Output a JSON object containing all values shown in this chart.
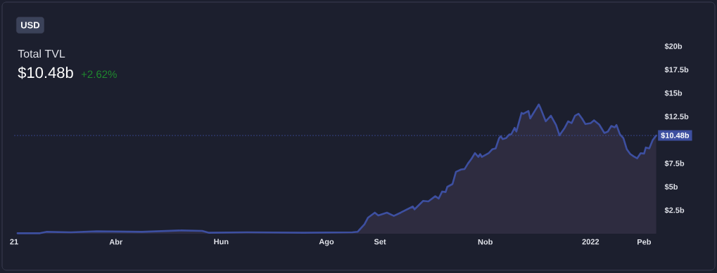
{
  "chart_data": {
    "type": "area",
    "title": "Total TVL",
    "subtitle": "$10.48b",
    "annotations": [
      "USD",
      "+2.62%"
    ],
    "x": [
      "2021-02-03",
      "2021-02-16",
      "2021-02-20",
      "2021-03-06",
      "2021-03-21",
      "2021-04-16",
      "2021-05-09",
      "2021-05-21",
      "2021-05-25",
      "2021-06-16",
      "2021-07-19",
      "2021-08-16",
      "2021-08-19",
      "2021-08-23",
      "2021-08-25",
      "2021-08-29",
      "2021-08-31",
      "2021-09-05",
      "2021-09-09",
      "2021-09-13",
      "2021-09-20",
      "2021-09-21",
      "2021-09-26",
      "2021-09-29",
      "2021-10-03",
      "2021-10-05",
      "2021-10-07",
      "2021-10-09",
      "2021-10-10",
      "2021-10-13",
      "2021-10-15",
      "2021-10-18",
      "2021-10-20",
      "2021-10-22",
      "2021-10-24",
      "2021-10-26",
      "2021-10-28",
      "2021-10-29",
      "2021-10-30",
      "2021-11-03",
      "2021-11-05",
      "2021-11-07",
      "2021-11-09",
      "2021-11-10",
      "2021-11-11",
      "2021-11-13",
      "2021-11-15",
      "2021-11-16",
      "2021-11-18",
      "2021-11-19",
      "2021-11-22",
      "2021-11-23",
      "2021-11-26",
      "2021-11-27",
      "2021-11-29",
      "2021-12-02",
      "2021-12-03",
      "2021-12-06",
      "2021-12-09",
      "2021-12-12",
      "2021-12-14",
      "2021-12-17",
      "2021-12-19",
      "2021-12-21",
      "2021-12-23",
      "2021-12-25",
      "2021-12-27",
      "2021-12-29",
      "2022-01-01",
      "2022-01-03",
      "2022-01-06",
      "2022-01-09",
      "2022-01-11",
      "2022-01-13",
      "2022-01-15",
      "2022-01-16",
      "2022-01-18",
      "2022-01-20",
      "2022-01-22",
      "2022-01-24",
      "2022-01-26",
      "2022-01-28",
      "2022-01-30",
      "2022-02-01",
      "2022-02-02",
      "2022-02-04",
      "2022-02-06",
      "2022-02-08"
    ],
    "values": [
      0.05,
      0.05,
      0.2,
      0.15,
      0.25,
      0.2,
      0.35,
      0.3,
      0.1,
      0.15,
      0.1,
      0.15,
      0.2,
      1.0,
      1.7,
      2.25,
      1.95,
      2.25,
      1.9,
      2.25,
      2.9,
      2.6,
      3.5,
      3.45,
      4.0,
      3.75,
      4.5,
      4.45,
      5.0,
      5.3,
      6.6,
      6.85,
      6.9,
      7.5,
      8.0,
      8.6,
      8.2,
      8.5,
      8.2,
      8.6,
      9.0,
      9.1,
      10.2,
      10.4,
      10.1,
      10.2,
      10.6,
      10.6,
      11.3,
      10.9,
      12.9,
      12.8,
      13.1,
      12.3,
      12.9,
      13.8,
      13.4,
      12.0,
      12.6,
      11.6,
      10.5,
      11.3,
      12.0,
      11.8,
      12.6,
      12.8,
      12.3,
      11.7,
      11.8,
      12.1,
      11.65,
      10.75,
      10.9,
      11.5,
      11.35,
      11.6,
      10.6,
      10.2,
      9.0,
      8.5,
      8.25,
      8.05,
      8.6,
      8.55,
      9.2,
      9.1,
      10.0,
      10.48
    ],
    "color": "#3d4fa0",
    "xlim": [
      "2021-02-01",
      "2022-02-09"
    ],
    "xticks": [
      {
        "value": "2021-02-01",
        "label": "21"
      },
      {
        "value": "2021-04-01",
        "label": "Abr"
      },
      {
        "value": "2021-06-01",
        "label": "Hun"
      },
      {
        "value": "2021-08-01",
        "label": "Ago"
      },
      {
        "value": "2021-09-01",
        "label": "Set"
      },
      {
        "value": "2021-11-01",
        "label": "Nob"
      },
      {
        "value": "2022-01-01",
        "label": "2022"
      },
      {
        "value": "2022-02-01",
        "label": "Peb"
      }
    ],
    "ylim": [
      0,
      20
    ],
    "yticks": [
      {
        "value": 2.5,
        "label": "$2.5b"
      },
      {
        "value": 5,
        "label": "$5b"
      },
      {
        "value": 7.5,
        "label": "$7.5b"
      },
      {
        "value": 12.5,
        "label": "$12.5b"
      },
      {
        "value": 15,
        "label": "$15b"
      },
      {
        "value": 17.5,
        "label": "$17.5b"
      },
      {
        "value": 20,
        "label": "$20b"
      }
    ],
    "ref_lines": [
      {
        "axis": "y",
        "value": 10.48,
        "label": "$10.48b",
        "color": "#3d4fa0",
        "line_style": "dashed"
      }
    ]
  }
}
